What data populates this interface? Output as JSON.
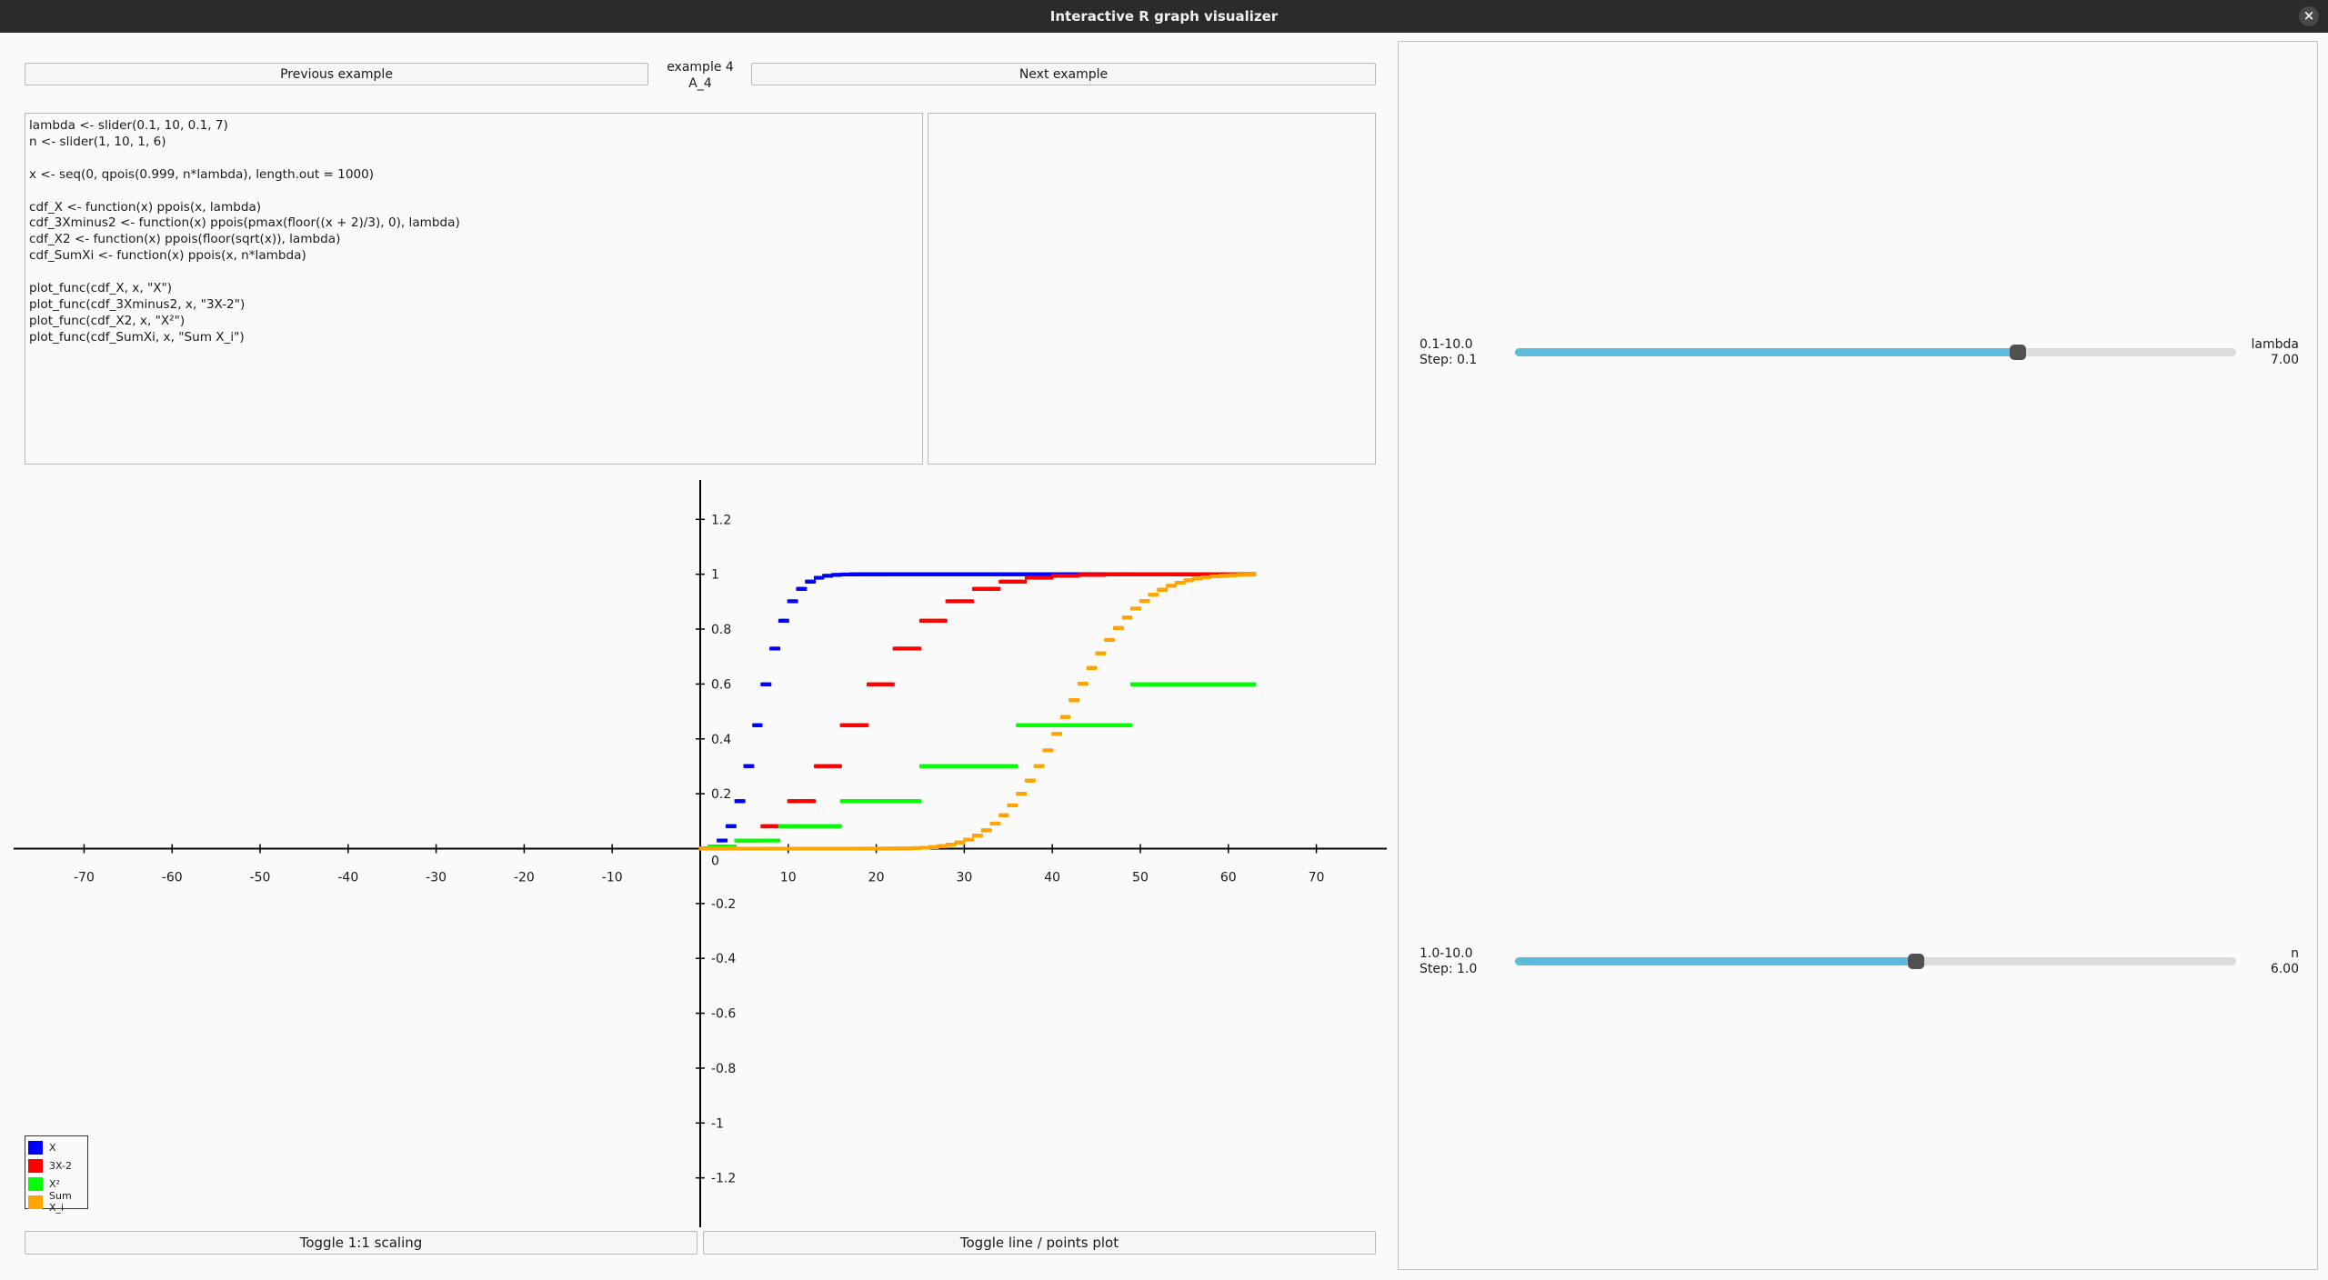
{
  "window": {
    "title": "Interactive R graph visualizer",
    "close_glyph": "×",
    "close_icon": "close-icon"
  },
  "nav": {
    "prev_label": "Previous example",
    "next_label": "Next example",
    "example_number": "example 4",
    "example_id": "A_4"
  },
  "code": "lambda <- slider(0.1, 10, 0.1, 7)\nn <- slider(1, 10, 1, 6)\n\nx <- seq(0, qpois(0.999, n*lambda), length.out = 1000)\n\ncdf_X <- function(x) ppois(x, lambda)\ncdf_3Xminus2 <- function(x) ppois(pmax(floor((x + 2)/3), 0), lambda)\ncdf_X2 <- function(x) ppois(floor(sqrt(x)), lambda)\ncdf_SumXi <- function(x) ppois(x, n*lambda)\n\nplot_func(cdf_X, x, \"X\")\nplot_func(cdf_3Xminus2, x, \"3X-2\")\nplot_func(cdf_X2, x, \"X²\")\nplot_func(cdf_SumXi, x, \"Sum X_i\")",
  "output": "",
  "chart_data": {
    "type": "scatter",
    "x_ticks": [
      -70,
      -60,
      -50,
      -40,
      -30,
      -20,
      -10,
      0,
      10,
      20,
      30,
      40,
      50,
      60,
      70
    ],
    "y_ticks": [
      -1.2,
      -1,
      -0.8,
      -0.6,
      -0.4,
      -0.2,
      0.2,
      0.4,
      0.6,
      0.8,
      1,
      1.2
    ],
    "origin_label": "0",
    "xlim": [
      -78,
      78
    ],
    "ylim": [
      -1.38,
      1.37
    ],
    "x_range": [
      0,
      63
    ],
    "lambda": 7,
    "n": 6,
    "series": [
      {
        "name": "X",
        "color": "#0000ff"
      },
      {
        "name": "3X-2",
        "color": "#ff0000"
      },
      {
        "name": "X²",
        "color": "#00ff00"
      },
      {
        "name": "Sum X_i",
        "color": "#ffa500"
      }
    ]
  },
  "buttons": {
    "toggle_scale": "Toggle 1:1 scaling",
    "toggle_mode": "Toggle line / points plot"
  },
  "sliders": [
    {
      "range_label": "0.1-10.0",
      "step_label": "Step: 0.1",
      "name": "lambda",
      "value_label": "7.00",
      "fraction": 0.697
    },
    {
      "range_label": "1.0-10.0",
      "step_label": "Step: 1.0",
      "name": "n",
      "value_label": "6.00",
      "fraction": 0.556
    }
  ]
}
